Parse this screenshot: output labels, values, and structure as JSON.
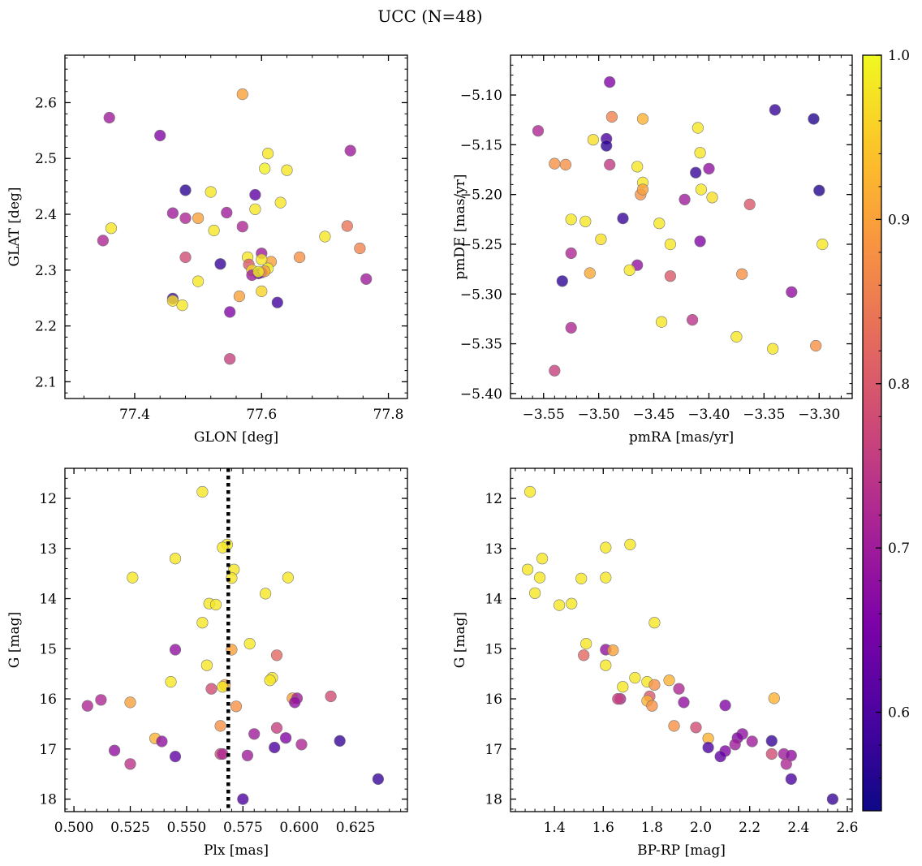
{
  "figure": {
    "title": "UCC (N=48)"
  },
  "colorbar": {
    "min": 0.54,
    "max": 1.0,
    "ticks": [
      0.6,
      0.7,
      0.8,
      0.9,
      1.0
    ],
    "tick_labels": [
      "0.6",
      "0.7",
      "0.8",
      "0.9",
      "1.0"
    ],
    "colormap": "plasma"
  },
  "chart_data": [
    {
      "type": "scatter",
      "xlabel": "GLON [deg]",
      "ylabel": "GLAT [deg]",
      "xlim": [
        77.29,
        77.83
      ],
      "ylim": [
        2.07,
        2.685
      ],
      "xticks": [
        77.4,
        77.6,
        77.8
      ],
      "xtick_labels": [
        "77.4",
        "77.6",
        "77.8"
      ],
      "yticks": [
        2.1,
        2.2,
        2.3,
        2.4,
        2.5,
        2.6
      ],
      "ytick_labels": [
        "2.1",
        "2.2",
        "2.3",
        "2.4",
        "2.5",
        "2.6"
      ],
      "invert_y": false,
      "points": [
        [
          77.57,
          2.615,
          0.9
        ],
        [
          77.36,
          2.573,
          0.7
        ],
        [
          77.44,
          2.541,
          0.66
        ],
        [
          77.74,
          2.514,
          0.7
        ],
        [
          77.61,
          2.509,
          0.98
        ],
        [
          77.605,
          2.482,
          0.99
        ],
        [
          77.64,
          2.479,
          0.98
        ],
        [
          77.48,
          2.443,
          0.57
        ],
        [
          77.52,
          2.44,
          0.98
        ],
        [
          77.59,
          2.435,
          0.62
        ],
        [
          77.63,
          2.421,
          0.98
        ],
        [
          77.59,
          2.409,
          0.98
        ],
        [
          77.46,
          2.402,
          0.7
        ],
        [
          77.545,
          2.403,
          0.7
        ],
        [
          77.48,
          2.393,
          0.72
        ],
        [
          77.5,
          2.393,
          0.9
        ],
        [
          77.57,
          2.378,
          0.72
        ],
        [
          77.735,
          2.379,
          0.84
        ],
        [
          77.363,
          2.375,
          0.98
        ],
        [
          77.525,
          2.371,
          0.98
        ],
        [
          77.35,
          2.353,
          0.72
        ],
        [
          77.7,
          2.36,
          0.98
        ],
        [
          77.755,
          2.339,
          0.86
        ],
        [
          77.48,
          2.323,
          0.78
        ],
        [
          77.66,
          2.323,
          0.88
        ],
        [
          77.6,
          2.33,
          0.7
        ],
        [
          77.615,
          2.315,
          0.9
        ],
        [
          77.578,
          2.323,
          0.98
        ],
        [
          77.6,
          2.319,
          0.98
        ],
        [
          77.58,
          2.31,
          0.8
        ],
        [
          77.535,
          2.311,
          0.58
        ],
        [
          77.61,
          2.303,
          0.99
        ],
        [
          77.585,
          2.3,
          0.96
        ],
        [
          77.6,
          2.296,
          0.65
        ],
        [
          77.595,
          2.294,
          0.6
        ],
        [
          77.585,
          2.291,
          0.7
        ],
        [
          77.605,
          2.298,
          0.9
        ],
        [
          77.5,
          2.28,
          0.98
        ],
        [
          77.765,
          2.284,
          0.7
        ],
        [
          77.6,
          2.262,
          0.96
        ],
        [
          77.565,
          2.253,
          0.9
        ],
        [
          77.46,
          2.249,
          0.58
        ],
        [
          77.46,
          2.245,
          0.97
        ],
        [
          77.475,
          2.237,
          0.98
        ],
        [
          77.625,
          2.242,
          0.59
        ],
        [
          77.55,
          2.225,
          0.66
        ],
        [
          77.55,
          2.141,
          0.76
        ],
        [
          77.595,
          2.297,
          0.99
        ]
      ]
    },
    {
      "type": "scatter",
      "xlabel": "pmRA [mas/yr]",
      "ylabel": "pmDE [mas/yr]",
      "xlim": [
        -3.58,
        -3.27
      ],
      "ylim": [
        -5.405,
        -5.06
      ],
      "xticks": [
        -3.55,
        -3.5,
        -3.45,
        -3.4,
        -3.35,
        -3.3
      ],
      "xtick_labels": [
        "−3.55",
        "−3.50",
        "−3.45",
        "−3.40",
        "−3.35",
        "−3.30"
      ],
      "yticks": [
        -5.4,
        -5.35,
        -5.3,
        -5.25,
        -5.2,
        -5.15,
        -5.1
      ],
      "ytick_labels": [
        "−5.40",
        "−5.35",
        "−5.30",
        "−5.25",
        "−5.20",
        "−5.15",
        "−5.10"
      ],
      "invert_y": false,
      "points": [
        [
          -3.49,
          -5.087,
          0.66
        ],
        [
          -3.555,
          -5.136,
          0.72
        ],
        [
          -3.488,
          -5.122,
          0.86
        ],
        [
          -3.46,
          -5.124,
          0.92
        ],
        [
          -3.34,
          -5.115,
          0.58
        ],
        [
          -3.305,
          -5.124,
          0.56
        ],
        [
          -3.493,
          -5.144,
          0.6
        ],
        [
          -3.493,
          -5.151,
          0.57
        ],
        [
          -3.505,
          -5.145,
          0.97
        ],
        [
          -3.41,
          -5.133,
          0.98
        ],
        [
          -3.54,
          -5.169,
          0.88
        ],
        [
          -3.53,
          -5.17,
          0.88
        ],
        [
          -3.49,
          -5.17,
          0.75
        ],
        [
          -3.465,
          -5.172,
          0.98
        ],
        [
          -3.408,
          -5.158,
          0.98
        ],
        [
          -3.412,
          -5.178,
          0.58
        ],
        [
          -3.4,
          -5.174,
          0.68
        ],
        [
          -3.46,
          -5.188,
          0.98
        ],
        [
          -3.462,
          -5.2,
          0.88
        ],
        [
          -3.46,
          -5.195,
          0.9
        ],
        [
          -3.407,
          -5.195,
          0.98
        ],
        [
          -3.397,
          -5.203,
          0.97
        ],
        [
          -3.422,
          -5.205,
          0.7
        ],
        [
          -3.363,
          -5.21,
          0.8
        ],
        [
          -3.3,
          -5.196,
          0.56
        ],
        [
          -3.525,
          -5.225,
          0.98
        ],
        [
          -3.512,
          -5.227,
          0.98
        ],
        [
          -3.478,
          -5.224,
          0.58
        ],
        [
          -3.445,
          -5.229,
          0.98
        ],
        [
          -3.498,
          -5.245,
          0.97
        ],
        [
          -3.435,
          -5.25,
          0.98
        ],
        [
          -3.408,
          -5.247,
          0.66
        ],
        [
          -3.297,
          -5.25,
          0.98
        ],
        [
          -3.525,
          -5.259,
          0.72
        ],
        [
          -3.508,
          -5.279,
          0.91
        ],
        [
          -3.465,
          -5.271,
          0.68
        ],
        [
          -3.472,
          -5.276,
          0.98
        ],
        [
          -3.435,
          -5.282,
          0.8
        ],
        [
          -3.37,
          -5.28,
          0.88
        ],
        [
          -3.533,
          -5.287,
          0.57
        ],
        [
          -3.325,
          -5.298,
          0.68
        ],
        [
          -3.525,
          -5.334,
          0.72
        ],
        [
          -3.443,
          -5.328,
          0.98
        ],
        [
          -3.415,
          -5.326,
          0.74
        ],
        [
          -3.375,
          -5.343,
          0.98
        ],
        [
          -3.342,
          -5.355,
          0.98
        ],
        [
          -3.303,
          -5.352,
          0.88
        ],
        [
          -3.54,
          -5.377,
          0.76
        ]
      ]
    },
    {
      "type": "scatter",
      "xlabel": "Plx [mas]",
      "ylabel": "G [mag]",
      "xlim": [
        0.496,
        0.648
      ],
      "ylim": [
        11.4,
        18.25
      ],
      "xticks": [
        0.5,
        0.525,
        0.55,
        0.575,
        0.6,
        0.625
      ],
      "xtick_labels": [
        "0.500",
        "0.525",
        "0.550",
        "0.575",
        "0.600",
        "0.625"
      ],
      "yticks": [
        12,
        13,
        14,
        15,
        16,
        17,
        18
      ],
      "ytick_labels": [
        "12",
        "13",
        "14",
        "15",
        "16",
        "17",
        "18"
      ],
      "invert_y": true,
      "vline": 0.5685,
      "points": [
        [
          0.557,
          11.87,
          0.98
        ],
        [
          0.568,
          12.92,
          0.98
        ],
        [
          0.566,
          12.98,
          0.98
        ],
        [
          0.545,
          13.2,
          0.98
        ],
        [
          0.571,
          13.42,
          0.98
        ],
        [
          0.526,
          13.58,
          0.98
        ],
        [
          0.57,
          13.59,
          0.98
        ],
        [
          0.595,
          13.58,
          0.98
        ],
        [
          0.585,
          13.9,
          0.98
        ],
        [
          0.56,
          14.1,
          0.98
        ],
        [
          0.563,
          14.12,
          0.98
        ],
        [
          0.557,
          14.48,
          0.98
        ],
        [
          0.578,
          14.9,
          0.98
        ],
        [
          0.545,
          15.02,
          0.68
        ],
        [
          0.57,
          15.02,
          0.9
        ],
        [
          0.59,
          15.13,
          0.82
        ],
        [
          0.559,
          15.33,
          0.98
        ],
        [
          0.588,
          15.58,
          0.98
        ],
        [
          0.587,
          15.63,
          0.98
        ],
        [
          0.543,
          15.66,
          0.98
        ],
        [
          0.567,
          15.72,
          0.9
        ],
        [
          0.566,
          15.76,
          0.98
        ],
        [
          0.561,
          15.8,
          0.78
        ],
        [
          0.597,
          15.99,
          0.9
        ],
        [
          0.599,
          15.99,
          0.7
        ],
        [
          0.614,
          15.95,
          0.78
        ],
        [
          0.512,
          16.02,
          0.72
        ],
        [
          0.598,
          16.07,
          0.68
        ],
        [
          0.525,
          16.07,
          0.9
        ],
        [
          0.506,
          16.14,
          0.72
        ],
        [
          0.572,
          16.15,
          0.88
        ],
        [
          0.565,
          16.54,
          0.88
        ],
        [
          0.59,
          16.58,
          0.76
        ],
        [
          0.58,
          16.7,
          0.7
        ],
        [
          0.536,
          16.79,
          0.92
        ],
        [
          0.594,
          16.78,
          0.66
        ],
        [
          0.539,
          16.85,
          0.68
        ],
        [
          0.618,
          16.84,
          0.58
        ],
        [
          0.601,
          16.91,
          0.72
        ],
        [
          0.589,
          16.97,
          0.6
        ],
        [
          0.518,
          17.03,
          0.68
        ],
        [
          0.565,
          17.1,
          0.78
        ],
        [
          0.566,
          17.1,
          0.72
        ],
        [
          0.545,
          17.15,
          0.62
        ],
        [
          0.577,
          17.13,
          0.7
        ],
        [
          0.525,
          17.3,
          0.74
        ],
        [
          0.635,
          17.6,
          0.58
        ],
        [
          0.575,
          18.0,
          0.6
        ]
      ]
    },
    {
      "type": "scatter",
      "xlabel": "BP-RP [mag]",
      "ylabel": "G [mag]",
      "xlim": [
        1.22,
        2.62
      ],
      "ylim": [
        11.4,
        18.25
      ],
      "xticks": [
        1.4,
        1.6,
        1.8,
        2.0,
        2.2,
        2.4,
        2.6
      ],
      "xtick_labels": [
        "1.4",
        "1.6",
        "1.8",
        "2.0",
        "2.2",
        "2.4",
        "2.6"
      ],
      "yticks": [
        12,
        13,
        14,
        15,
        16,
        17,
        18
      ],
      "ytick_labels": [
        "12",
        "13",
        "14",
        "15",
        "16",
        "17",
        "18"
      ],
      "invert_y": true,
      "points": [
        [
          1.3,
          11.87,
          0.98
        ],
        [
          1.71,
          12.92,
          0.98
        ],
        [
          1.61,
          12.98,
          0.98
        ],
        [
          1.35,
          13.2,
          0.98
        ],
        [
          1.29,
          13.42,
          0.98
        ],
        [
          1.34,
          13.58,
          0.98
        ],
        [
          1.51,
          13.6,
          0.98
        ],
        [
          1.61,
          13.58,
          0.98
        ],
        [
          1.32,
          13.89,
          0.98
        ],
        [
          1.42,
          14.13,
          0.98
        ],
        [
          1.47,
          14.1,
          0.98
        ],
        [
          1.81,
          14.48,
          0.98
        ],
        [
          1.53,
          14.9,
          0.98
        ],
        [
          1.61,
          15.02,
          0.68
        ],
        [
          1.64,
          15.03,
          0.9
        ],
        [
          1.52,
          15.13,
          0.82
        ],
        [
          1.61,
          15.33,
          0.98
        ],
        [
          1.73,
          15.58,
          0.98
        ],
        [
          1.87,
          15.63,
          0.92
        ],
        [
          1.78,
          15.66,
          0.98
        ],
        [
          1.81,
          15.72,
          0.88
        ],
        [
          1.68,
          15.76,
          0.98
        ],
        [
          1.91,
          15.8,
          0.72
        ],
        [
          2.3,
          15.99,
          0.92
        ],
        [
          1.79,
          15.95,
          0.8
        ],
        [
          1.67,
          16.0,
          0.72
        ],
        [
          1.66,
          16.0,
          0.76
        ],
        [
          1.93,
          16.07,
          0.68
        ],
        [
          1.78,
          16.04,
          0.92
        ],
        [
          1.8,
          16.14,
          0.88
        ],
        [
          2.1,
          16.13,
          0.66
        ],
        [
          1.89,
          16.54,
          0.88
        ],
        [
          1.98,
          16.57,
          0.78
        ],
        [
          2.17,
          16.7,
          0.68
        ],
        [
          2.03,
          16.79,
          0.92
        ],
        [
          2.15,
          16.78,
          0.66
        ],
        [
          2.21,
          16.85,
          0.7
        ],
        [
          2.29,
          16.84,
          0.58
        ],
        [
          2.14,
          16.91,
          0.7
        ],
        [
          2.03,
          16.97,
          0.6
        ],
        [
          2.1,
          17.04,
          0.66
        ],
        [
          2.29,
          17.1,
          0.78
        ],
        [
          2.34,
          17.1,
          0.7
        ],
        [
          2.08,
          17.15,
          0.62
        ],
        [
          2.37,
          17.13,
          0.68
        ],
        [
          2.35,
          17.3,
          0.72
        ],
        [
          2.37,
          17.6,
          0.6
        ],
        [
          2.54,
          18.0,
          0.58
        ]
      ]
    }
  ]
}
